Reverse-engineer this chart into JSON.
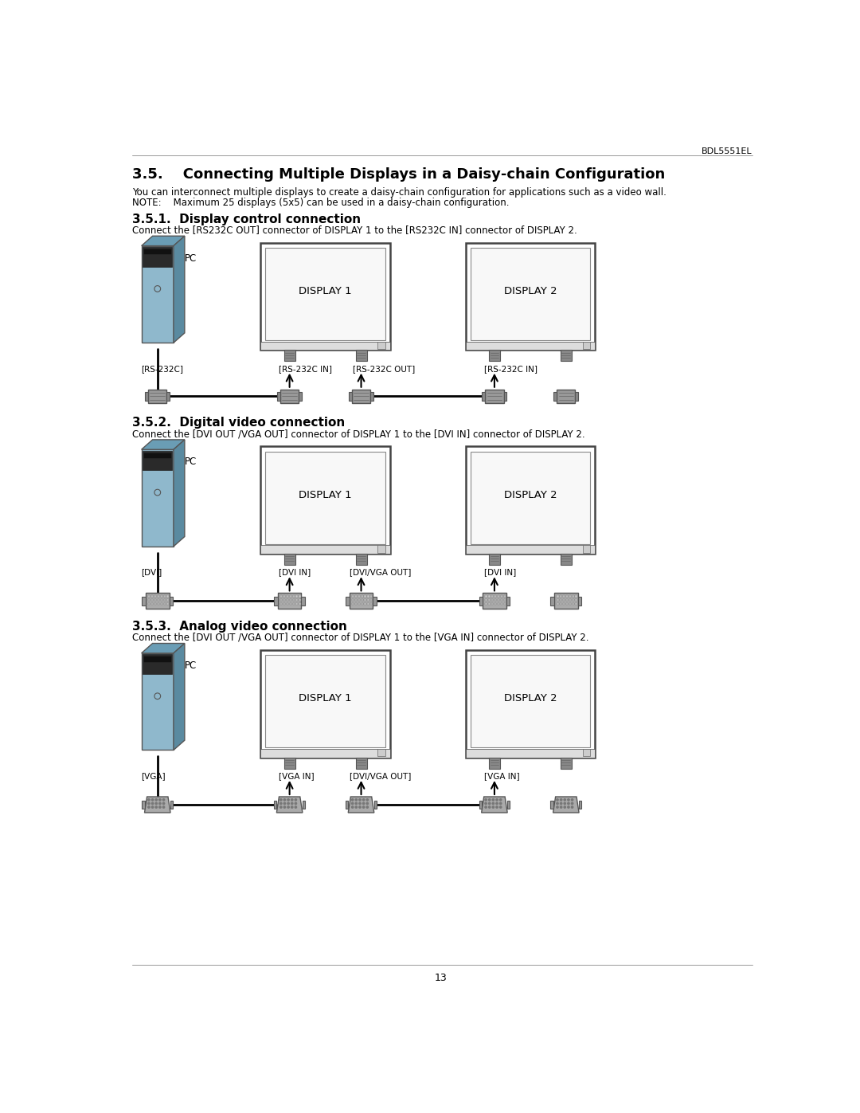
{
  "page_num": "13",
  "header_text": "BDL5551EL",
  "main_title": "3.5.    Connecting Multiple Displays in a Daisy-chain Configuration",
  "para1": "You can interconnect multiple displays to create a daisy-chain configuration for applications such as a video wall.",
  "para2": "NOTE:    Maximum 25 displays (5x5) can be used in a daisy-chain configuration.",
  "sec351_title": "3.5.1.  Display control connection",
  "sec351_desc": "Connect the [RS232C OUT] connector of DISPLAY 1 to the [RS232C IN] connector of DISPLAY 2.",
  "sec352_title": "3.5.2.  Digital video connection",
  "sec352_desc": "Connect the [DVI OUT /VGA OUT] connector of DISPLAY 1 to the [DVI IN] connector of DISPLAY 2.",
  "sec353_title": "3.5.3.  Analog video connection",
  "sec353_desc": "Connect the [DVI OUT /VGA OUT] connector of DISPLAY 1 to the [VGA IN] connector of DISPLAY 2.",
  "label_rs232": "[RS-232C]",
  "label_rs232in_d1": "[RS-232C IN]",
  "label_rs232out_d1": "[RS-232C OUT]",
  "label_rs232in_d2": "[RS-232C IN]",
  "label_dvi": "[DVI]",
  "label_dvi_in": "[DVI IN]",
  "label_dvi_vga_out": "[DVI/VGA OUT]",
  "label_dvi_in2": "[DVI IN]",
  "label_vga": "[VGA]",
  "label_vga_in": "[VGA IN]",
  "label_dvi_vga_out2": "[DVI/VGA OUT]",
  "label_vga_in2": "[VGA IN]",
  "display1_label": "DISPLAY 1",
  "display2_label": "DISPLAY 2",
  "pc_label": "PC",
  "bg_color": "#ffffff",
  "pc_front_color": "#8fb8cc",
  "pc_top_color": "#6a9db5",
  "pc_side_color": "#5a8aa0",
  "pc_dark_color": "#2a2a2a",
  "display_border": "#444444",
  "display_inner": "#888888",
  "tab_color": "#999999",
  "conn_color": "#888888",
  "conn_edge": "#555555"
}
